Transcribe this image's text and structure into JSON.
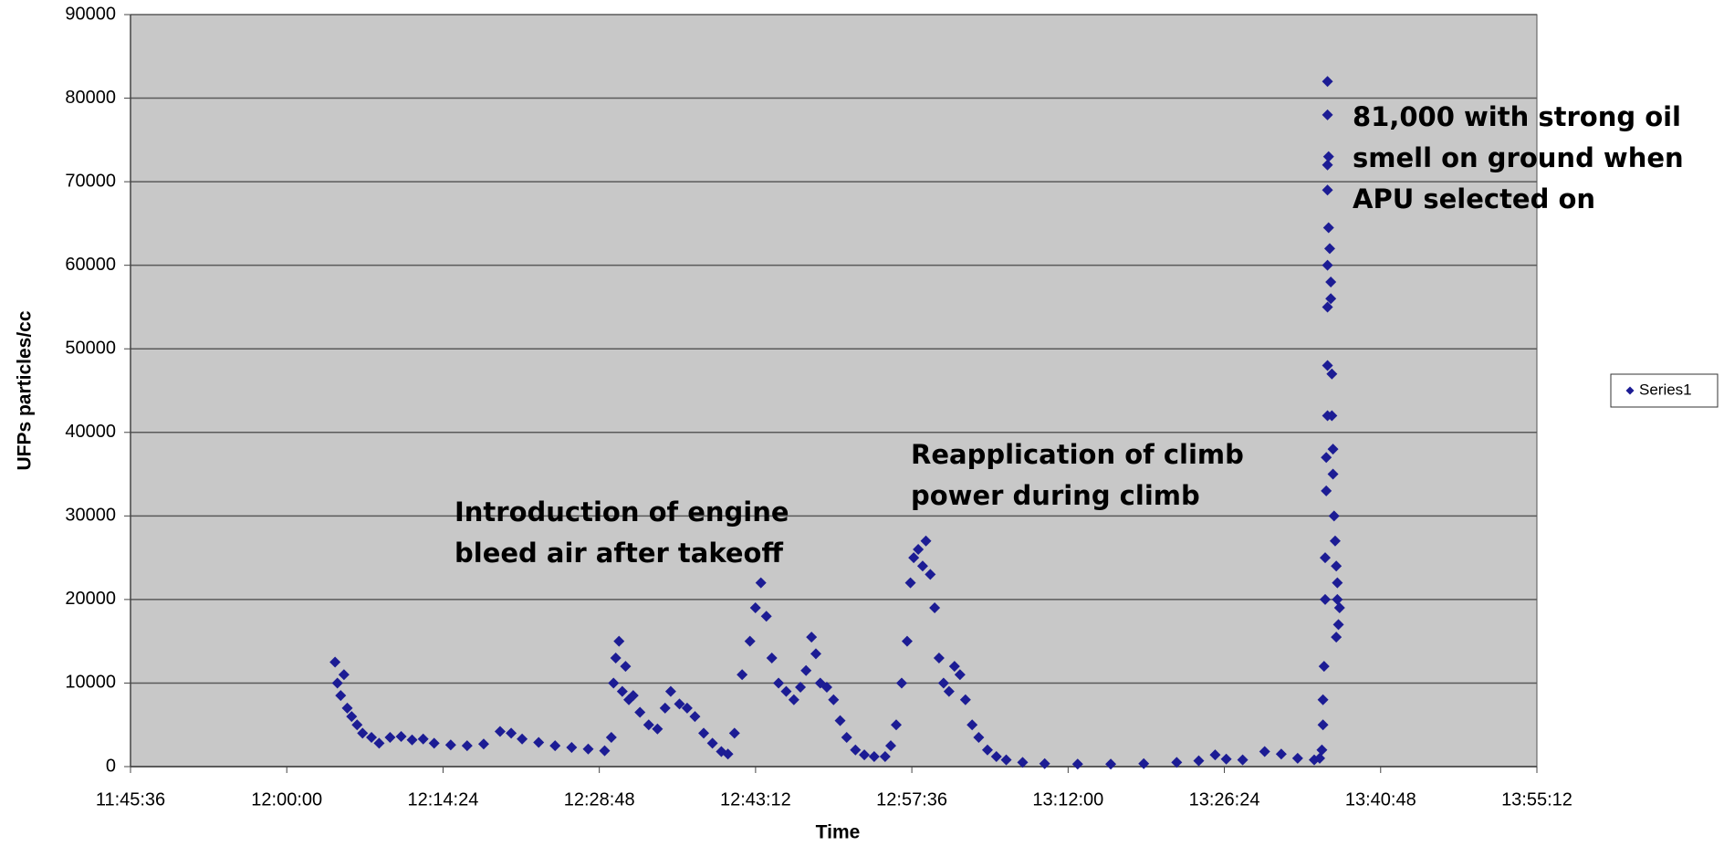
{
  "chart_data": {
    "type": "scatter",
    "y_label": "UFPs particles/cc",
    "x_label": "Time",
    "xlim": [
      0.49,
      0.58
    ],
    "xticks": [
      {
        "value": 0.49,
        "label": "11:45:36"
      },
      {
        "value": 0.5,
        "label": "12:00:00"
      },
      {
        "value": 0.51,
        "label": "12:14:24"
      },
      {
        "value": 0.52,
        "label": "12:28:48"
      },
      {
        "value": 0.53,
        "label": "12:43:12"
      },
      {
        "value": 0.54,
        "label": "12:57:36"
      },
      {
        "value": 0.55,
        "label": "13:12:00"
      },
      {
        "value": 0.56,
        "label": "13:26:24"
      },
      {
        "value": 0.57,
        "label": "13:40:48"
      },
      {
        "value": 0.58,
        "label": "13:55:12"
      }
    ],
    "ylim": [
      0,
      90000
    ],
    "yticks": [
      0,
      10000,
      20000,
      30000,
      40000,
      50000,
      60000,
      70000,
      80000,
      90000
    ],
    "grid": true,
    "legend": "right",
    "annotations": [
      {
        "lines": [
          "Introduction of engine",
          "bleed air after takeoff"
        ]
      },
      {
        "lines": [
          "Reapplication of climb",
          "power during climb"
        ]
      },
      {
        "lines": [
          "81,000 with strong oil",
          "smell on ground when",
          "APU selected on"
        ]
      }
    ],
    "series": [
      {
        "name": "Series1",
        "color": "#1c1c94",
        "x": [
          0.50309,
          0.50324,
          0.50345,
          0.50366,
          0.50387,
          0.50415,
          0.5045,
          0.50485,
          0.50542,
          0.50591,
          0.50661,
          0.50732,
          0.50802,
          0.50873,
          0.50943,
          0.51049,
          0.51154,
          0.5126,
          0.51365,
          0.51436,
          0.51506,
          0.51612,
          0.51717,
          0.51823,
          0.51929,
          0.52034,
          0.52077,
          0.52091,
          0.52105,
          0.52126,
          0.52147,
          0.52168,
          0.52189,
          0.52217,
          0.5226,
          0.52316,
          0.52372,
          0.52421,
          0.52457,
          0.52513,
          0.52562,
          0.52612,
          0.52668,
          0.52724,
          0.52781,
          0.52823,
          0.52865,
          0.52914,
          0.52964,
          0.52999,
          0.53034,
          0.53069,
          0.53104,
          0.53147,
          0.53196,
          0.53245,
          0.53287,
          0.53323,
          0.53358,
          0.53386,
          0.53414,
          0.53456,
          0.53499,
          0.53541,
          0.53583,
          0.53639,
          0.53696,
          0.53759,
          0.53829,
          0.53865,
          0.539,
          0.53935,
          0.5397,
          0.53991,
          0.54012,
          0.54041,
          0.54069,
          0.5409,
          0.54118,
          0.54146,
          0.54174,
          0.54203,
          0.54238,
          0.54273,
          0.54308,
          0.54343,
          0.54386,
          0.54428,
          0.54484,
          0.54541,
          0.54604,
          0.54709,
          0.5485,
          0.55061,
          0.55273,
          0.55484,
          0.55695,
          0.55836,
          0.55941,
          0.56012,
          0.56117,
          0.56258,
          0.56364,
          0.56469,
          0.56575,
          0.5661,
          0.56624,
          0.56631,
          0.56631,
          0.56638,
          0.56645,
          0.56645,
          0.56652,
          0.56652,
          0.5666,
          0.5666,
          0.5666,
          0.5666,
          0.56667,
          0.5666,
          0.5666,
          0.5666,
          0.5666,
          0.56667,
          0.56674,
          0.56681,
          0.56681,
          0.56688,
          0.56688,
          0.56695,
          0.56695,
          0.56702,
          0.56709,
          0.56716,
          0.56723,
          0.5673,
          0.56723,
          0.56737,
          0.56716
        ],
        "values": [
          12500,
          10000,
          8500,
          11000,
          7000,
          6000,
          5000,
          4000,
          3500,
          2800,
          3500,
          3600,
          3200,
          3300,
          2800,
          2600,
          2500,
          2700,
          4200,
          4000,
          3300,
          2900,
          2500,
          2300,
          2100,
          1900,
          3500,
          10000,
          13000,
          15000,
          9000,
          12000,
          8000,
          8500,
          6500,
          5000,
          4500,
          7000,
          9000,
          7500,
          7000,
          6000,
          4000,
          2800,
          1800,
          1500,
          4000,
          11000,
          15000,
          19000,
          22000,
          18000,
          13000,
          10000,
          9000,
          8000,
          9500,
          11500,
          15500,
          13500,
          10000,
          9500,
          8000,
          5500,
          3500,
          2000,
          1400,
          1200,
          1200,
          2500,
          5000,
          10000,
          15000,
          22000,
          25000,
          26000,
          24000,
          27000,
          23000,
          19000,
          13000,
          10000,
          9000,
          12000,
          11000,
          8000,
          5000,
          3500,
          2000,
          1200,
          800,
          500,
          350,
          300,
          300,
          350,
          500,
          700,
          1400,
          900,
          800,
          1800,
          1500,
          1000,
          800,
          1000,
          2000,
          5000,
          8000,
          12000,
          20000,
          25000,
          33000,
          37000,
          42000,
          48000,
          55000,
          60000,
          64500,
          69000,
          72000,
          78000,
          82000,
          73000,
          62000,
          58000,
          56000,
          47000,
          42000,
          38000,
          35000,
          30000,
          27000,
          24000,
          20000,
          17000,
          22000,
          19000,
          15500
        ]
      }
    ]
  }
}
